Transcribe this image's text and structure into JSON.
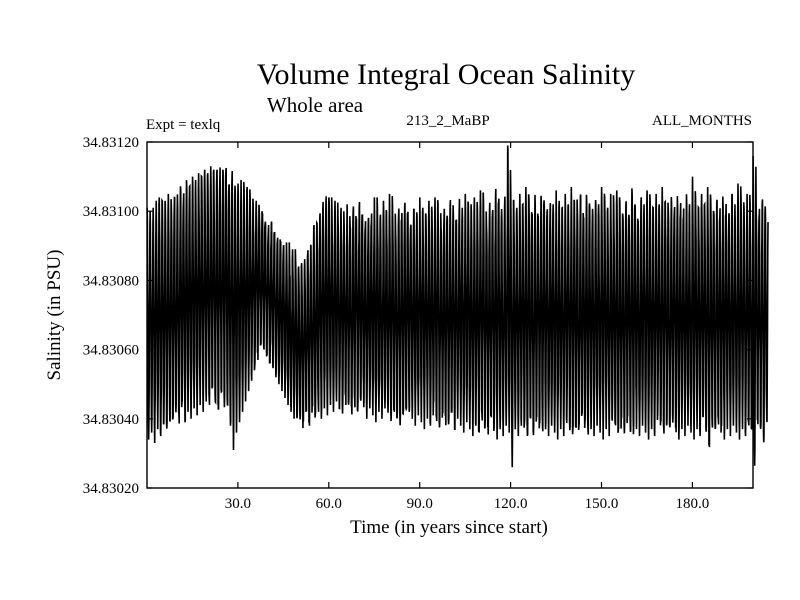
{
  "chart_data": {
    "type": "line",
    "title": "Volume Integral Ocean Salinity",
    "subtitle": "Whole area",
    "experiment": "Expt = texlq",
    "run_label": "213_2_MaBP",
    "months_label": "ALL_MONTHS",
    "xlabel": "Time (in years since start)",
    "ylabel": "Salinity (in PSU)",
    "xlim": [
      0,
      200
    ],
    "ylim": [
      34.8302,
      34.8312
    ],
    "x_ticks": [
      30,
      60,
      90,
      120,
      150,
      180
    ],
    "x_tick_labels": [
      "30.0",
      "60.0",
      "90.0",
      "120.0",
      "150.0",
      "180.0"
    ],
    "y_ticks": [
      34.8302,
      34.8304,
      34.8306,
      34.8308,
      34.831,
      34.8312
    ],
    "y_tick_labels": [
      "34.83020",
      "34.83040",
      "34.83060",
      "34.83080",
      "34.83100",
      "34.83120"
    ],
    "grid": false,
    "series": [
      {
        "name": "Salinity",
        "sampling": "monthly",
        "x_step_years": 1,
        "annual_max": [
          34.83101,
          34.831,
          34.83101,
          34.83103,
          34.83104,
          34.83103,
          34.83102,
          34.83105,
          34.83104,
          34.83106,
          34.83105,
          34.83108,
          34.83107,
          34.83109,
          34.83108,
          34.8311,
          34.83109,
          34.83111,
          34.8311,
          34.83112,
          34.83111,
          34.83113,
          34.83112,
          34.83114,
          34.83113,
          34.83115,
          34.83114,
          34.83112,
          34.83113,
          34.8311,
          34.83108,
          34.83109,
          34.83106,
          34.83107,
          34.83104,
          34.83102,
          34.83103,
          34.831,
          34.83101,
          34.83098,
          34.83096,
          34.83097,
          34.83094,
          34.83095,
          34.83092,
          34.8309,
          34.83091,
          34.83088,
          34.83089,
          34.83086,
          34.83084,
          34.83085,
          34.83087,
          34.8309,
          34.83093,
          34.83096,
          34.83099,
          34.83102,
          34.83104,
          34.83106,
          34.83104,
          34.831,
          34.83103,
          34.83098,
          34.83101,
          34.83097,
          34.83102,
          34.83099,
          34.83103,
          34.831,
          34.83104,
          34.83101,
          34.83099,
          34.83102,
          34.831,
          34.83104,
          34.83101,
          34.83099,
          34.83103,
          34.831,
          34.83105,
          34.83101,
          34.83098,
          34.83102,
          34.831,
          34.83104,
          34.83101,
          34.83099,
          34.83103,
          34.831,
          34.83104,
          34.83101,
          34.83099,
          34.83103,
          34.831,
          34.83104,
          34.83102,
          34.83099,
          34.83103,
          34.83101,
          34.83105,
          34.83102,
          34.831,
          34.83104,
          34.83101,
          34.83105,
          34.83102,
          34.831,
          34.83104,
          34.83101,
          34.83106,
          34.83103,
          34.831,
          34.83104,
          34.83102,
          34.83107,
          34.83104,
          34.83101,
          34.83105,
          34.83119,
          34.83106,
          34.83103,
          34.83101,
          34.83105,
          34.83102,
          34.83107,
          34.83104,
          34.83101,
          34.83105,
          34.83102,
          34.83107,
          34.83104,
          34.83101,
          34.83105,
          34.83102,
          34.83106,
          34.83103,
          34.83101,
          34.83105,
          34.83102,
          34.83107,
          34.83104,
          34.83101,
          34.83105,
          34.83102,
          34.83106,
          34.83103,
          34.83101,
          34.83105,
          34.83102,
          34.83107,
          34.83104,
          34.83101,
          34.83105,
          34.83102,
          34.83106,
          34.83103,
          34.83101,
          34.83105,
          34.83102,
          34.83107,
          34.83104,
          34.83101,
          34.83105,
          34.83102,
          34.83106,
          34.83103,
          34.83101,
          34.83105,
          34.83102,
          34.83107,
          34.83104,
          34.83101,
          34.83105,
          34.83102,
          34.83106,
          34.83103,
          34.83101,
          34.83105,
          34.83102,
          34.8311,
          34.83104,
          34.83101,
          34.83105,
          34.83102,
          34.83107,
          34.83104,
          34.83101,
          34.83105,
          34.83102,
          34.83106,
          34.83103,
          34.83101,
          34.83105,
          34.83102,
          34.83108,
          34.83104,
          34.83101,
          34.83105,
          34.83102,
          34.83116,
          34.83104,
          34.83101,
          34.83105,
          34.83102
        ],
        "annual_min": [
          34.83034,
          34.83036,
          34.83033,
          34.83037,
          34.83035,
          34.83038,
          34.83036,
          34.83039,
          34.83037,
          34.8304,
          34.83038,
          34.83041,
          34.83039,
          34.83042,
          34.8304,
          34.83043,
          34.83041,
          34.83044,
          34.83042,
          34.83045,
          34.83043,
          34.83046,
          34.83044,
          34.83042,
          34.83045,
          34.83043,
          34.8304,
          34.83038,
          34.83031,
          34.83036,
          34.83039,
          34.83042,
          34.83045,
          34.83048,
          34.83051,
          34.83054,
          34.83057,
          34.83059,
          34.8306,
          34.83058,
          34.83056,
          34.83054,
          34.83052,
          34.8305,
          34.83048,
          34.83046,
          34.83044,
          34.83042,
          34.8304,
          34.83038,
          34.83039,
          34.83037,
          34.8304,
          34.83038,
          34.83041,
          34.83039,
          34.83042,
          34.8304,
          34.83043,
          34.83041,
          34.83044,
          34.83042,
          34.83045,
          34.83043,
          34.83041,
          34.83044,
          34.83042,
          34.8304,
          34.83043,
          34.83041,
          34.83044,
          34.83042,
          34.8304,
          34.83043,
          34.83041,
          34.83039,
          34.83042,
          34.8304,
          34.83043,
          34.83041,
          34.83039,
          34.83042,
          34.8304,
          34.83038,
          34.83041,
          34.83039,
          34.83042,
          34.8304,
          34.83038,
          34.83041,
          34.83039,
          34.83037,
          34.8304,
          34.83038,
          34.83041,
          34.83039,
          34.83037,
          34.8304,
          34.83038,
          34.83036,
          34.83039,
          34.83037,
          34.8304,
          34.83038,
          34.83036,
          34.83039,
          34.83037,
          34.83035,
          34.83038,
          34.83036,
          34.83039,
          34.83037,
          34.83035,
          34.83038,
          34.83036,
          34.83034,
          34.83037,
          34.83035,
          34.83038,
          34.83036,
          34.83026,
          34.83037,
          34.83035,
          34.83038,
          34.83036,
          34.83034,
          34.83037,
          34.83035,
          34.83038,
          34.83036,
          34.83034,
          34.83037,
          34.83035,
          34.83038,
          34.83036,
          34.83034,
          34.83037,
          34.83035,
          34.83038,
          34.83036,
          34.83034,
          34.83037,
          34.83035,
          34.83038,
          34.83036,
          34.83034,
          34.83037,
          34.83035,
          34.83038,
          34.83036,
          34.83034,
          34.83037,
          34.83035,
          34.83038,
          34.83036,
          34.83034,
          34.83037,
          34.83035,
          34.83038,
          34.83036,
          34.83034,
          34.83037,
          34.83035,
          34.83038,
          34.83036,
          34.83034,
          34.83037,
          34.83035,
          34.83038,
          34.83036,
          34.83034,
          34.83037,
          34.83035,
          34.83038,
          34.83036,
          34.83034,
          34.83037,
          34.83035,
          34.83038,
          34.83036,
          34.83034,
          34.83037,
          34.83035,
          34.83038,
          34.83036,
          34.8303,
          34.83037,
          34.83035,
          34.83038,
          34.83036,
          34.83034,
          34.83037,
          34.83035,
          34.83038,
          34.83036,
          34.83034,
          34.83037,
          34.83035,
          34.83038,
          34.83036,
          34.83026,
          34.83037,
          34.83035,
          34.83033,
          34.83036
        ]
      }
    ]
  }
}
